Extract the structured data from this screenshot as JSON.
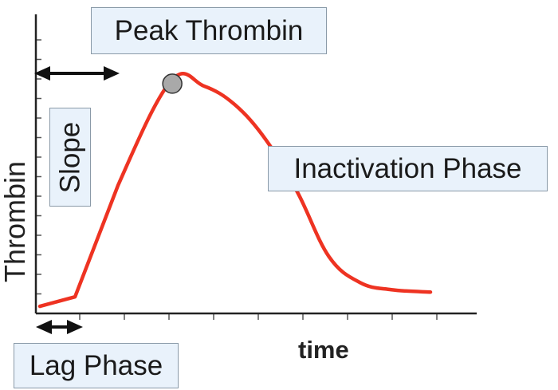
{
  "chart_data": {
    "type": "line",
    "title": "",
    "xlabel": "time",
    "ylabel": "Thrombin",
    "xlim": [
      0,
      10
    ],
    "ylim": [
      0,
      10
    ],
    "grid": false,
    "series": [
      {
        "color": "#ee3322",
        "x": [
          0,
          0.9,
          2.0,
          3.35,
          4.2,
          5.0,
          5.8,
          6.6,
          7.4,
          8.2,
          9.0,
          10.0
        ],
        "y": [
          0.2,
          0.6,
          5.3,
          9.7,
          9.5,
          8.7,
          7.2,
          5.0,
          2.3,
          1.2,
          0.9,
          0.8
        ]
      }
    ],
    "peak_marker": {
      "x": 3.35,
      "y": 9.7,
      "color": "#a9a9a9"
    },
    "annotations": {
      "peak": "Peak Thrombin",
      "inactivation": "Inactivation Phase",
      "slope": "Slope",
      "lag": "Lag Phase"
    }
  }
}
